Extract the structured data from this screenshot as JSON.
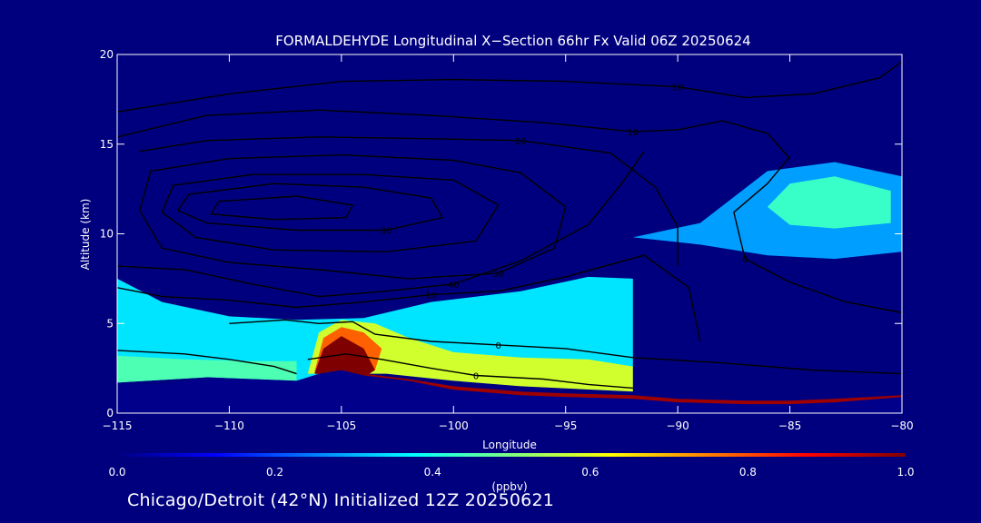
{
  "chart_data": {
    "type": "heatmap",
    "title": "FORMALDEHYDE Longitudinal X−Section 66hr  Fx Valid 06Z 20250624",
    "xlabel": "Longitude",
    "ylabel": "Altitude (km)",
    "xlim": [
      -115,
      -80
    ],
    "ylim": [
      0,
      20
    ],
    "x_ticks": [
      -115,
      -110,
      -105,
      -100,
      -95,
      -90,
      -85,
      -80
    ],
    "x_tick_labels": [
      "−115",
      "−110",
      "−105",
      "−100",
      "−95",
      "−90",
      "−85",
      "−80"
    ],
    "y_ticks": [
      0,
      5,
      10,
      15,
      20
    ],
    "y_tick_labels": [
      "0",
      "5",
      "10",
      "15",
      "20"
    ],
    "colorbar": {
      "label": "(ppbv)",
      "min": 0.0,
      "max": 1.0,
      "ticks": [
        0.0,
        0.2,
        0.4,
        0.6,
        0.8,
        1.0
      ],
      "tick_labels": [
        "0.0",
        "0.2",
        "0.4",
        "0.6",
        "0.8",
        "1.0"
      ],
      "colormap": [
        "#00007f",
        "#0000ff",
        "#007fff",
        "#00ffff",
        "#7fff7f",
        "#ffff00",
        "#ff7f00",
        "#ff0000",
        "#7f0000"
      ]
    },
    "terrain": {
      "lon": [
        -115,
        -113,
        -111,
        -109,
        -107,
        -106,
        -105,
        -104,
        -102,
        -100,
        -97,
        -95,
        -92,
        -90,
        -87,
        -85,
        -83,
        -80
      ],
      "alt": [
        1.7,
        1.6,
        2.0,
        1.9,
        1.8,
        2.2,
        2.4,
        2.1,
        1.8,
        1.3,
        1.0,
        0.9,
        0.8,
        0.6,
        0.5,
        0.5,
        0.6,
        0.9
      ]
    },
    "regions": [
      {
        "name": "lower-troposphere",
        "value": 0.35,
        "polygon": [
          [
            -115,
            1.7
          ],
          [
            -115,
            7.5
          ],
          [
            -113,
            6.2
          ],
          [
            -110,
            5.4
          ],
          [
            -107,
            5.2
          ],
          [
            -104,
            5.3
          ],
          [
            -101,
            6.2
          ],
          [
            -97,
            6.8
          ],
          [
            -94,
            7.6
          ],
          [
            -92,
            7.5
          ],
          [
            -92,
            2.5
          ],
          [
            -97,
            2.6
          ],
          [
            -100,
            2.7
          ],
          [
            -103,
            2.5
          ],
          [
            -105,
            2.4
          ],
          [
            -107,
            1.8
          ],
          [
            -111,
            2.0
          ],
          [
            -115,
            1.7
          ]
        ]
      },
      {
        "name": "lower-troposphere-core",
        "value": 0.45,
        "polygon": [
          [
            -115,
            1.7
          ],
          [
            -115,
            3.2
          ],
          [
            -112,
            3.0
          ],
          [
            -109,
            2.9
          ],
          [
            -107,
            2.9
          ],
          [
            -107,
            1.8
          ],
          [
            -111,
            2.0
          ],
          [
            -115,
            1.7
          ]
        ]
      },
      {
        "name": "boundary-plume",
        "value": 0.58,
        "polygon": [
          [
            -106.5,
            2.2
          ],
          [
            -106,
            4.5
          ],
          [
            -105,
            5.2
          ],
          [
            -103.5,
            5.0
          ],
          [
            -102,
            4.2
          ],
          [
            -100,
            3.4
          ],
          [
            -97,
            3.1
          ],
          [
            -94,
            3.0
          ],
          [
            -92,
            2.6
          ],
          [
            -92,
            1.2
          ],
          [
            -97,
            1.5
          ],
          [
            -100,
            1.8
          ],
          [
            -103,
            2.2
          ],
          [
            -106.5,
            2.2
          ]
        ]
      },
      {
        "name": "plume-core",
        "value": 0.78,
        "polygon": [
          [
            -106.2,
            2.3
          ],
          [
            -105.8,
            4.2
          ],
          [
            -105,
            4.8
          ],
          [
            -104,
            4.5
          ],
          [
            -103.2,
            3.6
          ],
          [
            -103.5,
            2.4
          ],
          [
            -106.2,
            2.3
          ]
        ]
      },
      {
        "name": "eastern-upper-band",
        "value": 0.28,
        "polygon": [
          [
            -92,
            9.8
          ],
          [
            -89,
            10.6
          ],
          [
            -86,
            13.5
          ],
          [
            -83,
            14.0
          ],
          [
            -80,
            13.2
          ],
          [
            -80,
            9.0
          ],
          [
            -83,
            8.6
          ],
          [
            -86,
            8.8
          ],
          [
            -89,
            9.4
          ],
          [
            -92,
            9.8
          ]
        ]
      },
      {
        "name": "eastern-upper-core",
        "value": 0.43,
        "polygon": [
          [
            -86,
            11.5
          ],
          [
            -85,
            12.8
          ],
          [
            -83,
            13.2
          ],
          [
            -80.5,
            12.4
          ],
          [
            -80.5,
            10.6
          ],
          [
            -83,
            10.3
          ],
          [
            -85,
            10.5
          ],
          [
            -86,
            11.5
          ]
        ]
      },
      {
        "name": "surface-layer-east",
        "value": 0.97,
        "polygon": [
          [
            -105.5,
            2.3
          ],
          [
            -104,
            2.2
          ],
          [
            -102,
            1.9
          ],
          [
            -100,
            1.5
          ],
          [
            -97,
            1.2
          ],
          [
            -95,
            1.1
          ],
          [
            -92,
            1.0
          ],
          [
            -90,
            0.8
          ],
          [
            -87,
            0.7
          ],
          [
            -85,
            0.7
          ],
          [
            -83,
            0.8
          ],
          [
            -80,
            1.0
          ],
          [
            -80,
            0.6
          ],
          [
            -83,
            0.4
          ],
          [
            -85,
            0.3
          ],
          [
            -87,
            0.3
          ],
          [
            -90,
            0.4
          ],
          [
            -92,
            0.6
          ],
          [
            -95,
            0.7
          ],
          [
            -97,
            0.8
          ],
          [
            -100,
            1.1
          ],
          [
            -102,
            1.5
          ],
          [
            -104,
            1.8
          ],
          [
            -105.5,
            2.1
          ]
        ]
      },
      {
        "name": "surface-core",
        "value": 1.0,
        "polygon": [
          [
            -106.2,
            2.2
          ],
          [
            -105.8,
            3.6
          ],
          [
            -105,
            4.3
          ],
          [
            -104,
            3.6
          ],
          [
            -103.5,
            2.4
          ],
          [
            -104,
            2.0
          ],
          [
            -106.2,
            2.2
          ]
        ]
      }
    ],
    "contours": [
      {
        "level_label": "10",
        "points": [
          [
            -115,
            16.8
          ],
          [
            -110,
            17.8
          ],
          [
            -105,
            18.5
          ],
          [
            -100,
            18.6
          ],
          [
            -95,
            18.5
          ],
          [
            -90,
            18.2
          ],
          [
            -87,
            17.6
          ],
          [
            -84,
            17.8
          ],
          [
            -81,
            18.7
          ],
          [
            -80,
            19.6
          ]
        ]
      },
      {
        "level_label": "10",
        "points": [
          [
            -115,
            15.4
          ],
          [
            -111,
            16.6
          ],
          [
            -106,
            16.9
          ],
          [
            -101,
            16.6
          ],
          [
            -96,
            16.2
          ],
          [
            -92,
            15.7
          ],
          [
            -90,
            15.8
          ],
          [
            -88,
            16.3
          ],
          [
            -86,
            15.6
          ],
          [
            -85,
            14.2
          ]
        ]
      },
      {
        "level_label": "20",
        "points": [
          [
            -114,
            14.6
          ],
          [
            -111,
            15.2
          ],
          [
            -106,
            15.4
          ],
          [
            -101,
            15.3
          ],
          [
            -97,
            15.2
          ],
          [
            -93,
            14.5
          ],
          [
            -91,
            12.6
          ],
          [
            -90,
            10.4
          ],
          [
            -90,
            8.2
          ]
        ]
      },
      {
        "level_label": "30",
        "points": [
          [
            -113.5,
            13.5
          ],
          [
            -110,
            14.2
          ],
          [
            -105,
            14.4
          ],
          [
            -100,
            14.1
          ],
          [
            -97,
            13.4
          ],
          [
            -95,
            11.5
          ],
          [
            -95.5,
            9.2
          ],
          [
            -98,
            7.8
          ],
          [
            -102,
            7.5
          ],
          [
            -106,
            8.0
          ],
          [
            -110,
            8.4
          ],
          [
            -113,
            9.2
          ],
          [
            -114,
            11.3
          ],
          [
            -113.5,
            13.5
          ]
        ]
      },
      {
        "level_label": "",
        "points": [
          [
            -112.5,
            12.7
          ],
          [
            -109,
            13.3
          ],
          [
            -104,
            13.3
          ],
          [
            -100,
            13.0
          ],
          [
            -98,
            11.6
          ],
          [
            -99,
            9.6
          ],
          [
            -103,
            9.0
          ],
          [
            -108,
            9.1
          ],
          [
            -111.5,
            9.8
          ],
          [
            -113,
            11.2
          ],
          [
            -112.5,
            12.7
          ]
        ]
      },
      {
        "level_label": "30",
        "points": [
          [
            -111.8,
            12.2
          ],
          [
            -108,
            12.8
          ],
          [
            -104,
            12.6
          ],
          [
            -101,
            12.0
          ],
          [
            -100.5,
            10.9
          ],
          [
            -103,
            10.2
          ],
          [
            -107,
            10.2
          ],
          [
            -111,
            10.6
          ],
          [
            -112.3,
            11.3
          ],
          [
            -111.8,
            12.2
          ]
        ]
      },
      {
        "level_label": "",
        "points": [
          [
            -110.5,
            11.8
          ],
          [
            -107,
            12.1
          ],
          [
            -104.5,
            11.6
          ],
          [
            -104.8,
            10.9
          ],
          [
            -108,
            10.8
          ],
          [
            -110.8,
            11.1
          ],
          [
            -110.5,
            11.8
          ]
        ]
      },
      {
        "level_label": "40",
        "points": [
          [
            -115,
            8.2
          ],
          [
            -112,
            8.0
          ],
          [
            -109,
            7.2
          ],
          [
            -106,
            6.5
          ],
          [
            -103,
            6.8
          ],
          [
            -100,
            7.2
          ],
          [
            -97,
            8.5
          ],
          [
            -94,
            10.5
          ],
          [
            -92.5,
            12.8
          ],
          [
            -91.5,
            14.6
          ]
        ]
      },
      {
        "level_label": "10",
        "points": [
          [
            -115,
            7.0
          ],
          [
            -113,
            6.5
          ],
          [
            -110,
            6.3
          ],
          [
            -107,
            5.9
          ],
          [
            -104,
            6.2
          ],
          [
            -101,
            6.6
          ],
          [
            -98,
            6.8
          ],
          [
            -95,
            7.6
          ],
          [
            -91.5,
            8.8
          ],
          [
            -89.5,
            7.0
          ],
          [
            -89,
            4.0
          ]
        ]
      },
      {
        "level_label": "0",
        "points": [
          [
            -85,
            14.3
          ],
          [
            -86,
            12.8
          ],
          [
            -87.5,
            11.2
          ],
          [
            -87,
            8.6
          ],
          [
            -85,
            7.3
          ],
          [
            -82.5,
            6.2
          ],
          [
            -80,
            5.6
          ]
        ]
      },
      {
        "level_label": "0",
        "points": [
          [
            -110,
            5.0
          ],
          [
            -107.5,
            5.2
          ],
          [
            -106,
            5.0
          ],
          [
            -104.5,
            5.1
          ],
          [
            -103.5,
            4.4
          ],
          [
            -101,
            4.0
          ],
          [
            -98,
            3.8
          ],
          [
            -95,
            3.6
          ],
          [
            -92,
            3.1
          ],
          [
            -88,
            2.8
          ],
          [
            -84,
            2.4
          ],
          [
            -80,
            2.2
          ]
        ]
      },
      {
        "level_label": "0",
        "points": [
          [
            -106.5,
            3.0
          ],
          [
            -104.8,
            3.3
          ],
          [
            -103.2,
            3.0
          ],
          [
            -101,
            2.5
          ],
          [
            -99,
            2.1
          ],
          [
            -96,
            1.9
          ],
          [
            -94,
            1.6
          ],
          [
            -92,
            1.4
          ]
        ]
      },
      {
        "level_label": "",
        "points": [
          [
            -115,
            3.5
          ],
          [
            -112,
            3.3
          ],
          [
            -110,
            3.0
          ],
          [
            -108,
            2.6
          ],
          [
            -107,
            2.2
          ]
        ]
      }
    ]
  },
  "footer": "Chicago/Detroit (42°N) Initialized 12Z 20250621"
}
